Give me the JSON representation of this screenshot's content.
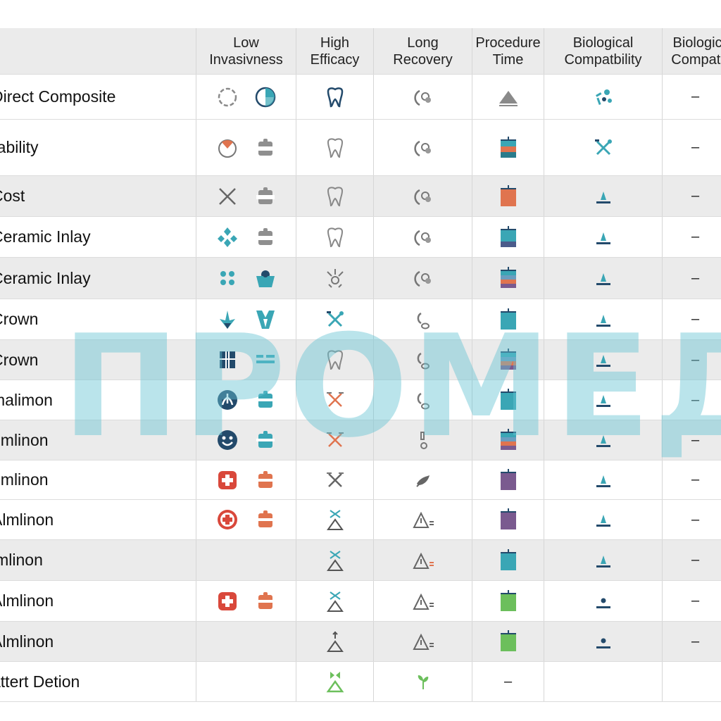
{
  "columns": [
    "",
    "Low\nInvasivness",
    "High\nEfficacy",
    "Long\nRecovery",
    "Procedure\nTime",
    "Biological\nCompatbility",
    "Biologic\nCompati"
  ],
  "rows": [
    {
      "label": "Direct Composite",
      "shade": false,
      "low": [
        "ring-icon",
        "pie-icon"
      ],
      "high": "tooth-dark-icon",
      "recovery": "recovery-icon",
      "time": "triangle-grey-icon",
      "bio": "scatter-teal-icon",
      "last": "–"
    },
    {
      "label": "rability",
      "shade": false,
      "low": [
        "gauge-red-icon",
        "puzzle-grey-icon"
      ],
      "high": "tooth-icon",
      "recovery": "recovery-icon",
      "time": "block-teal-orange-icon",
      "bio": "tools-teal-icon",
      "last": "–"
    },
    {
      "label": "Cost",
      "shade": true,
      "low": [
        "cross-lines-icon",
        "puzzle-grey-icon"
      ],
      "high": "tooth-icon",
      "recovery": "recovery-icon",
      "time": "block-orange-icon",
      "bio": "marker-teal-icon",
      "last": "–"
    },
    {
      "label": "Ceramic Inlay",
      "shade": false,
      "low": [
        "diamonds-blue-icon",
        "puzzle-grey-icon"
      ],
      "high": "tooth-icon",
      "recovery": "recovery-icon",
      "time": "block-blue-purple-icon",
      "bio": "marker-teal-icon",
      "last": "–"
    },
    {
      "label": "Ceramic Inlay",
      "shade": true,
      "low": [
        "dots-blue-icon",
        "people-blue-icon"
      ],
      "high": "spark-icon",
      "recovery": "recovery-icon",
      "time": "block-multi-icon",
      "bio": "marker-teal-icon",
      "last": "–"
    },
    {
      "label": "Crown",
      "shade": false,
      "low": [
        "arrow-down-blue-icon",
        "chevrons-blue-icon"
      ],
      "high": "tools-teal-icon",
      "recovery": "recovery-small-icon",
      "time": "block-blue-icon",
      "bio": "marker-teal-icon",
      "last": "–"
    },
    {
      "label": "Crown",
      "shade": true,
      "low": [
        "grid-navy-icon",
        "bars-blue-icon"
      ],
      "high": "tooth-icon",
      "recovery": "recovery-small-icon",
      "time": "block-multi-icon",
      "bio": "marker-teal-icon",
      "last": "–"
    },
    {
      "label": "malimon",
      "shade": false,
      "low": [
        "leaf-circle-navy-icon",
        "puzzle-blue-icon"
      ],
      "high": "tools-orange-icon",
      "recovery": "recovery-small-icon",
      "time": "block-blue-icon",
      "bio": "marker-teal-icon",
      "last": "–"
    },
    {
      "label": "umlinon",
      "shade": true,
      "low": [
        "face-circle-navy-icon",
        "puzzle-blue-icon"
      ],
      "high": "tools-orange-icon",
      "recovery": "recovery-figure-icon",
      "time": "block-multi-icon",
      "bio": "marker-teal-icon",
      "last": "–"
    },
    {
      "label": "umlinon",
      "shade": false,
      "low": [
        "plus-square-red-icon",
        "puzzle-red-icon"
      ],
      "high": "tools-grey-icon",
      "recovery": "leaf-icon",
      "time": "block-purple-icon",
      "bio": "marker-teal-icon",
      "last": "–"
    },
    {
      "label": "Almlinon",
      "shade": false,
      "low": [
        "plus-circle-red-icon",
        "puzzle-red-icon"
      ],
      "high": "tools-triangle-icon",
      "recovery": "warning-icon",
      "time": "block-purple-icon",
      "bio": "marker-teal-icon",
      "last": "–"
    },
    {
      "label": "lmlinon",
      "shade": true,
      "low": [],
      "high": "tools-triangle-icon",
      "recovery": "warning-orange-icon",
      "time": "block-blue-icon",
      "bio": "marker-teal-icon",
      "last": "–"
    },
    {
      "label": "Almlinon",
      "shade": false,
      "low": [
        "plus-square-red-icon",
        "puzzle-red-icon"
      ],
      "high": "tools-triangle-icon",
      "recovery": "warning-icon",
      "time": "block-green-icon",
      "bio": "marker-navy-icon",
      "last": "–"
    },
    {
      "label": "Almlinon",
      "shade": true,
      "low": [],
      "high": "arrow-triangle-icon",
      "recovery": "warning-icon",
      "time": "block-green-icon",
      "bio": "marker-navy-icon",
      "last": "–"
    },
    {
      "label": "attert Detion",
      "shade": false,
      "low": [],
      "high": "triangle-green-icon",
      "recovery": "sprout-green-icon",
      "time": "–",
      "bio": "",
      "last": ""
    }
  ],
  "watermark": "ПРОМЕД",
  "colors": {
    "teal": "#3aa6b5",
    "orange": "#e0744f",
    "red": "#d9483b",
    "navy": "#234a6b",
    "purple": "#7a5a8f",
    "green": "#6cbf5c",
    "grey": "#8a8a8a"
  }
}
